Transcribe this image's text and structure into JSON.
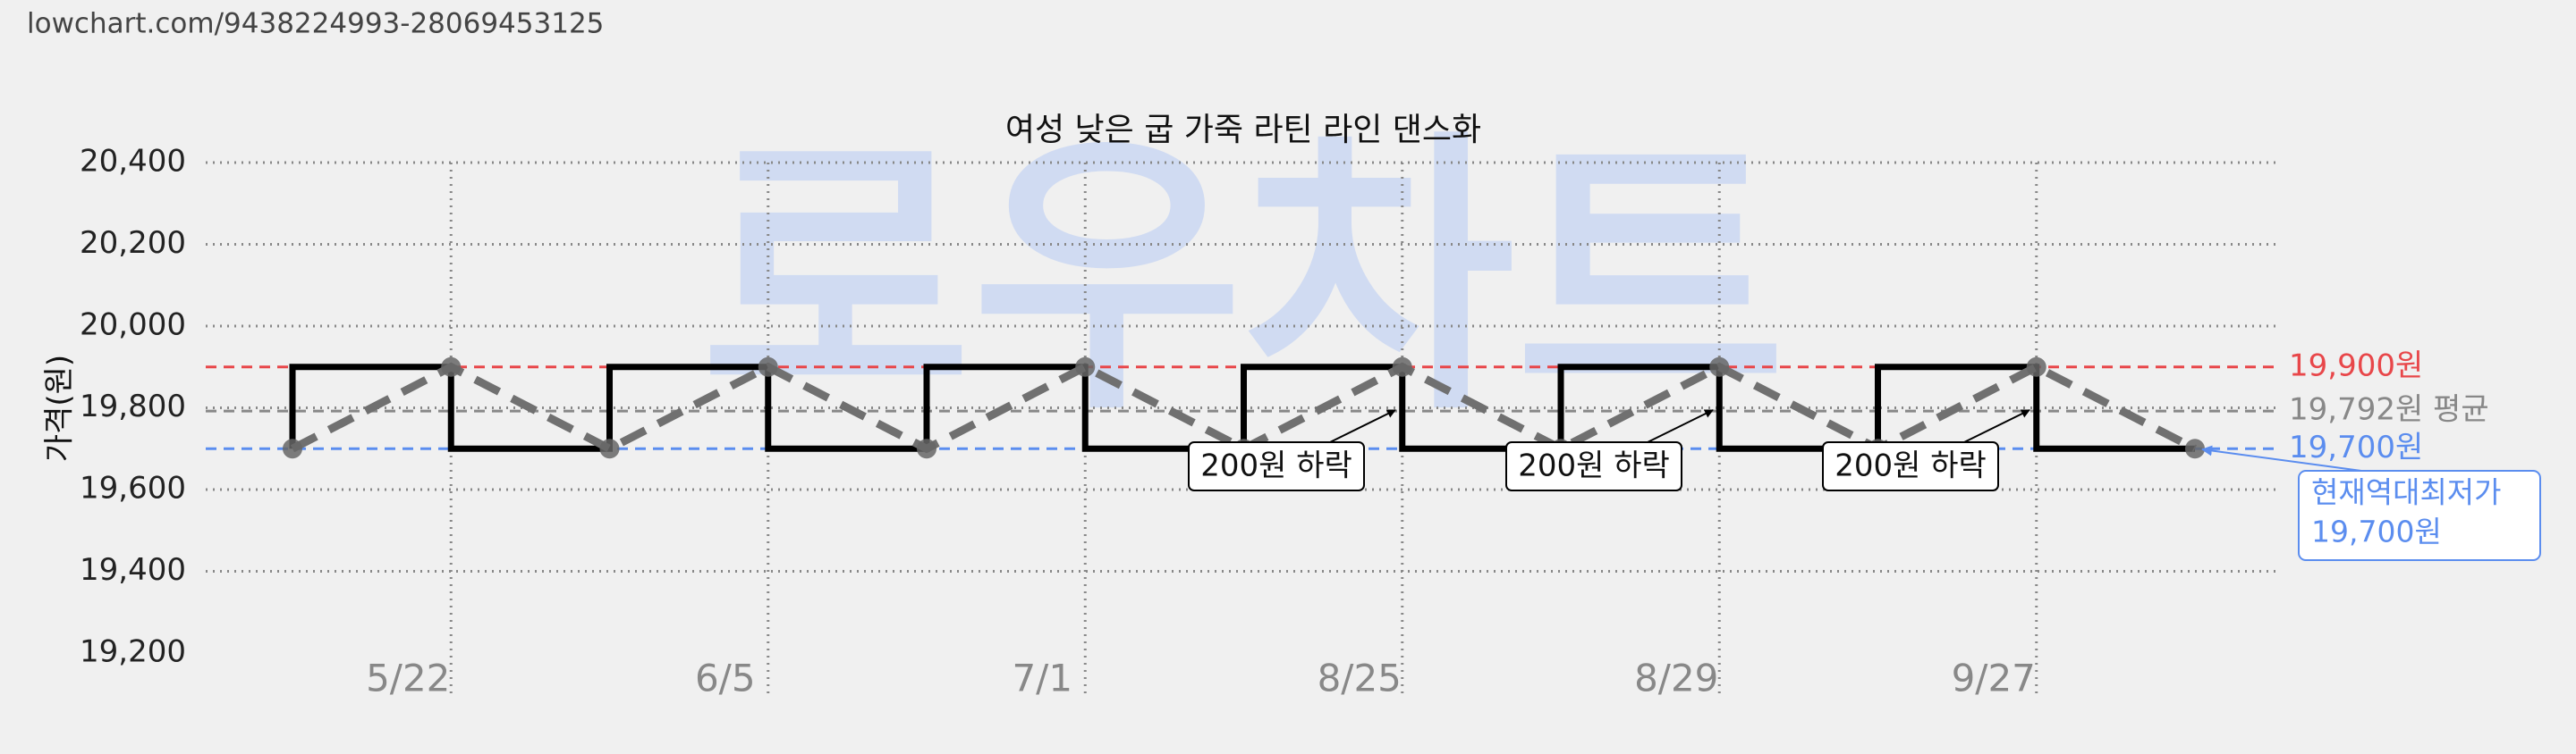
{
  "url": "lowchart.com/9438224993-28069453125",
  "chart_data": {
    "type": "line",
    "title": "여성 낮은 굽 가죽 라틴 라인 댄스화",
    "watermark": "로우차트",
    "y_label": "가격(원)",
    "categories": [
      null,
      "5/22",
      null,
      "6/5",
      null,
      "7/1",
      null,
      "8/25",
      null,
      "8/29",
      null,
      "9/27",
      null
    ],
    "series": [
      {
        "style": "step",
        "color": "#000000",
        "values": [
          19700,
          19900,
          19700,
          19900,
          19700,
          19900,
          19700,
          19900,
          19700,
          19900,
          19700,
          19900,
          19700
        ]
      },
      {
        "style": "dashed",
        "color": "#707070",
        "values": [
          19700,
          19900,
          19700,
          19900,
          19700,
          19900,
          19700,
          19900,
          19700,
          19900,
          19700,
          19900,
          19700
        ]
      }
    ],
    "ylim": [
      19200,
      20400
    ],
    "yticks": [
      {
        "value": 19200,
        "label": "19,200"
      },
      {
        "value": 19400,
        "label": "19,400"
      },
      {
        "value": 19600,
        "label": "19,600"
      },
      {
        "value": 19800,
        "label": "19,800"
      },
      {
        "value": 20000,
        "label": "20,000"
      },
      {
        "value": 20200,
        "label": "20,200"
      },
      {
        "value": 20400,
        "label": "20,400"
      }
    ],
    "grid": true,
    "reference_lines": [
      {
        "value": 19900,
        "label": "19,900원",
        "color": "#e8474a"
      },
      {
        "value": 19792,
        "label": "19,792원 평균",
        "color": "#888888"
      },
      {
        "value": 19700,
        "label": "19,700원",
        "color": "#5b8def"
      }
    ],
    "annotations": [
      "200원 하락",
      "200원 하락",
      "200원 하락"
    ],
    "lowest_note": [
      "현재역대최저가",
      "19,700원"
    ]
  }
}
